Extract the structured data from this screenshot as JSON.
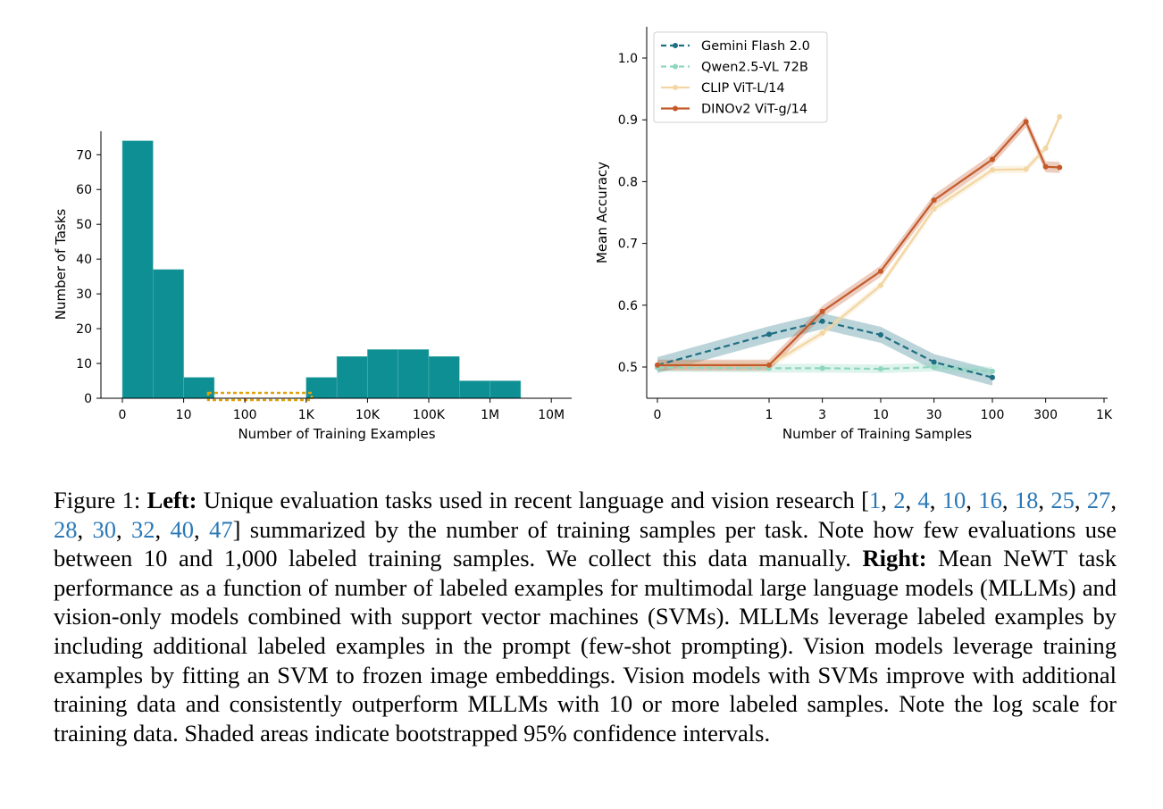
{
  "chart_data": [
    {
      "type": "bar",
      "title": "",
      "xlabel": "Number of Training Examples",
      "ylabel": "Number of Tasks",
      "x_scale": "log (bins of half a decade)",
      "x_tick_labels": [
        "0",
        "10",
        "100",
        "1K",
        "10K",
        "100K",
        "1M",
        "10M"
      ],
      "y_ticks": [
        0,
        10,
        20,
        30,
        40,
        50,
        60,
        70
      ],
      "ylim": [
        0,
        77
      ],
      "bar_color": "#0e8f93",
      "highlight_color": "#e0a30e",
      "highlight_range": "roughly 30 to 1K training examples",
      "bins": [
        {
          "range": "0 to ~3",
          "value": 74
        },
        {
          "range": "~3 to 10",
          "value": 37
        },
        {
          "range": "10 to ~30",
          "value": 6
        },
        {
          "range": "~30 to 100",
          "value": 0
        },
        {
          "range": "100 to ~300",
          "value": 0
        },
        {
          "range": "~300 to 1K",
          "value": 0
        },
        {
          "range": "1K to ~3K",
          "value": 6
        },
        {
          "range": "~3K to 10K",
          "value": 12
        },
        {
          "range": "10K to ~30K",
          "value": 14
        },
        {
          "range": "~30K to 100K",
          "value": 14
        },
        {
          "range": "100K to ~300K",
          "value": 12
        },
        {
          "range": "~300K to 1M",
          "value": 5
        },
        {
          "range": "1M to ~3M",
          "value": 5
        }
      ],
      "grid": false
    },
    {
      "type": "line",
      "title": "",
      "xlabel": "Number of Training Samples",
      "ylabel": "Mean Accuracy",
      "x_scale": "symlog",
      "x_ticks": [
        0,
        1,
        3,
        10,
        30,
        100,
        300,
        1000
      ],
      "x_tick_labels": [
        "0",
        "1",
        "3",
        "10",
        "30",
        "100",
        "300",
        "1K"
      ],
      "y_ticks": [
        0.5,
        0.6,
        0.7,
        0.8,
        0.9,
        1.0
      ],
      "y_tick_labels": [
        "0.5",
        "0.6",
        "0.7",
        "0.8",
        "0.9",
        "1.0"
      ],
      "ylim": [
        0.45,
        1.05
      ],
      "legend_position": "top-left",
      "grid": false,
      "series": [
        {
          "name": "Gemini Flash 2.0",
          "color": "#1f6f82",
          "dash": true,
          "x": [
            0,
            1,
            3,
            10,
            30,
            100
          ],
          "y": [
            0.503,
            0.553,
            0.574,
            0.552,
            0.508,
            0.483
          ],
          "ci": 0.013
        },
        {
          "name": "Qwen2.5-VL 72B",
          "color": "#8fd6bf",
          "dash": true,
          "x": [
            0,
            1,
            3,
            10,
            30,
            100
          ],
          "y": [
            0.499,
            0.498,
            0.498,
            0.497,
            0.5,
            0.493
          ],
          "ci": 0.007
        },
        {
          "name": "CLIP ViT-L/14",
          "color": "#f2d6a3",
          "dash": false,
          "x": [
            0,
            1,
            3,
            10,
            30,
            100,
            200,
            300,
            400
          ],
          "y": [
            0.503,
            0.503,
            0.555,
            0.632,
            0.756,
            0.819,
            0.82,
            0.854,
            0.905
          ],
          "ci": 0.006
        },
        {
          "name": "DINOv2 ViT-g/14",
          "color": "#c45a2a",
          "dash": false,
          "x": [
            0,
            1,
            3,
            10,
            30,
            100,
            200,
            300,
            400
          ],
          "y": [
            0.503,
            0.503,
            0.59,
            0.655,
            0.77,
            0.836,
            0.897,
            0.824,
            0.823
          ],
          "ci": 0.009
        }
      ]
    }
  ],
  "caption": {
    "figure_label": "Figure 1: ",
    "left_label": "Left:",
    "left_text_1": " Unique evaluation tasks used in recent language and vision research [",
    "refs": [
      "1",
      "2",
      "4",
      "10",
      "16",
      "18",
      "25",
      "27",
      "28",
      "30",
      "32",
      "40",
      "47"
    ],
    "left_text_2": "] summarized by the number of training samples per task. Note how few evaluations use between 10 and 1,000 labeled training samples. We collect this data manually.",
    "right_label": "Right:",
    "right_text": " Mean NeWT task performance as a function of number of labeled examples for multimodal large language models (MLLMs) and vision-only models combined with support vector machines (SVMs). MLLMs leverage labeled examples by including additional labeled examples in the prompt (few-shot prompting). Vision models leverage training examples by fitting an SVM to frozen image embeddings. Vision models with SVMs improve with additional training data and consistently outperform MLLMs with 10 or more labeled samples. Note the log scale for training data. Shaded areas indicate bootstrapped 95% confidence intervals."
  }
}
